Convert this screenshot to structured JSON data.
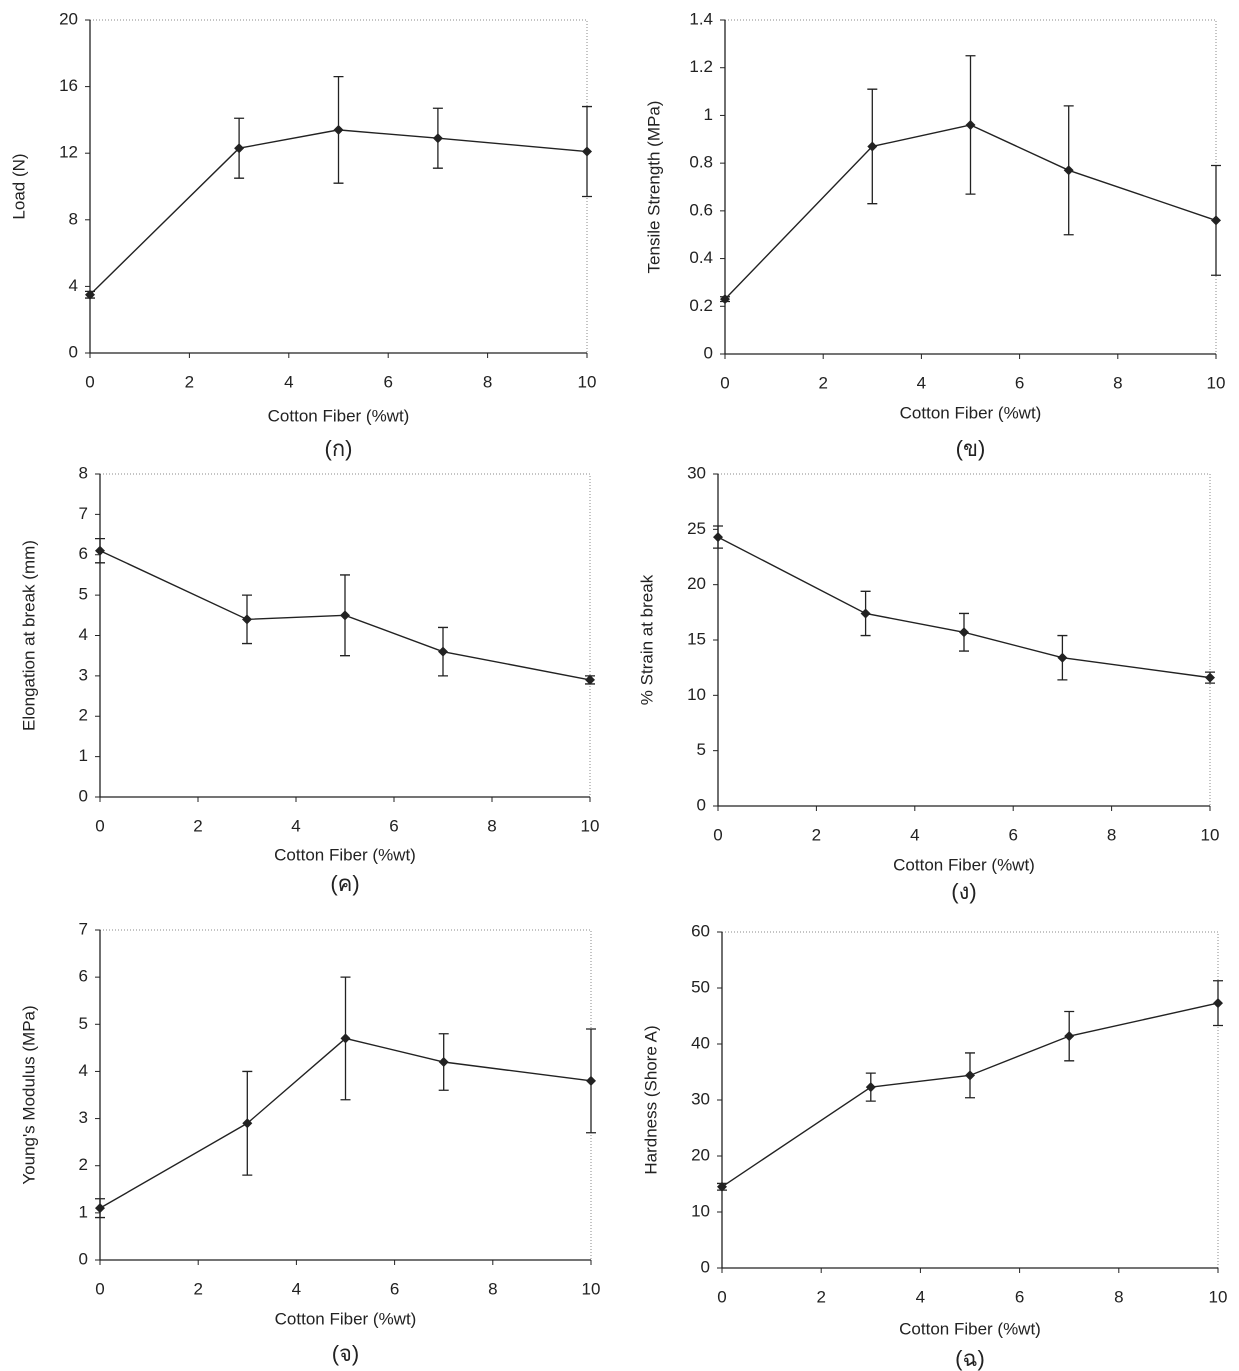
{
  "chart_data": [
    {
      "type": "line",
      "xlabel": "Cotton Fiber (%wt)",
      "ylabel": "Load (N)",
      "caption": "(ก)",
      "x": [
        0,
        3,
        5,
        7,
        10
      ],
      "values": [
        3.5,
        12.3,
        13.4,
        12.9,
        12.1
      ],
      "errors": [
        0.2,
        1.8,
        3.2,
        1.8,
        2.7
      ],
      "color": "#222222",
      "xlim": [
        0,
        10
      ],
      "xticks": [
        0,
        2,
        4,
        6,
        8,
        10
      ],
      "ylim": [
        0,
        20
      ],
      "yticks": [
        0,
        4,
        8,
        12,
        16,
        20
      ]
    },
    {
      "type": "line",
      "xlabel": "Cotton Fiber (%wt)",
      "ylabel": "Tensile Strength (MPa)",
      "caption": "(ข)",
      "x": [
        0,
        3,
        5,
        7,
        10
      ],
      "values": [
        0.23,
        0.87,
        0.96,
        0.77,
        0.56
      ],
      "errors": [
        0.01,
        0.24,
        0.29,
        0.27,
        0.23
      ],
      "color": "#222222",
      "xlim": [
        0,
        10
      ],
      "xticks": [
        0,
        2,
        4,
        6,
        8,
        10
      ],
      "ylim": [
        0,
        1.4
      ],
      "yticks": [
        0,
        0.2,
        0.4,
        0.6,
        0.8,
        1,
        1.2,
        1.4
      ]
    },
    {
      "type": "line",
      "xlabel": "Cotton Fiber (%wt)",
      "ylabel": "Elongation at break (mm)",
      "caption": "(ค)",
      "x": [
        0,
        3,
        5,
        7,
        10
      ],
      "values": [
        6.1,
        4.4,
        4.5,
        3.6,
        2.9
      ],
      "errors": [
        0.3,
        0.6,
        1.0,
        0.6,
        0.1
      ],
      "color": "#222222",
      "xlim": [
        0,
        10
      ],
      "xticks": [
        0,
        2,
        4,
        6,
        8,
        10
      ],
      "ylim": [
        0,
        8
      ],
      "yticks": [
        0,
        1,
        2,
        3,
        4,
        5,
        6,
        7,
        8
      ]
    },
    {
      "type": "line",
      "xlabel": "Cotton Fiber (%wt)",
      "ylabel": "% Strain at break",
      "caption": "(ง)",
      "x": [
        0,
        3,
        5,
        7,
        10
      ],
      "values": [
        24.3,
        17.4,
        15.7,
        13.4,
        11.6
      ],
      "errors": [
        1.0,
        2.0,
        1.7,
        2.0,
        0.5
      ],
      "color": "#222222",
      "xlim": [
        0,
        10
      ],
      "xticks": [
        0,
        2,
        4,
        6,
        8,
        10
      ],
      "ylim": [
        0,
        30
      ],
      "yticks": [
        0,
        5,
        10,
        15,
        20,
        25,
        30
      ]
    },
    {
      "type": "line",
      "xlabel": "Cotton Fiber (%wt)",
      "ylabel": "Young's Modulus (MPa)",
      "caption": "(จ)",
      "x": [
        0,
        3,
        5,
        7,
        10
      ],
      "values": [
        1.1,
        2.9,
        4.7,
        4.2,
        3.8
      ],
      "errors": [
        0.2,
        1.1,
        1.3,
        0.6,
        1.1
      ],
      "color": "#222222",
      "xlim": [
        0,
        10
      ],
      "xticks": [
        0,
        2,
        4,
        6,
        8,
        10
      ],
      "ylim": [
        0,
        7
      ],
      "yticks": [
        0,
        1,
        2,
        3,
        4,
        5,
        6,
        7
      ]
    },
    {
      "type": "line",
      "xlabel": "Cotton Fiber (%wt)",
      "ylabel": "Hardness (Shore A)",
      "caption": "(ฉ)",
      "x": [
        0,
        3,
        5,
        7,
        10
      ],
      "values": [
        14.5,
        32.3,
        34.4,
        41.4,
        47.3
      ],
      "errors": [
        0.6,
        2.5,
        4.0,
        4.4,
        4.0
      ],
      "color": "#222222",
      "xlim": [
        0,
        10
      ],
      "xticks": [
        0,
        2,
        4,
        6,
        8,
        10
      ],
      "ylim": [
        0,
        60
      ],
      "yticks": [
        0,
        10,
        20,
        30,
        40,
        50,
        60
      ]
    }
  ]
}
